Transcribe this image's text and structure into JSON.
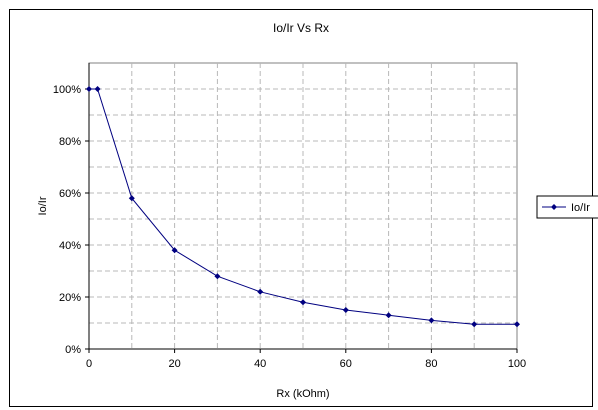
{
  "chart_data": {
    "type": "line",
    "title": "Io/Ir Vs Rx",
    "xlabel": "Rx (kOhm)",
    "ylabel": "Io/Ir",
    "xlim": [
      0,
      100
    ],
    "ylim": [
      0,
      1.1
    ],
    "x_ticks": [
      0,
      20,
      40,
      60,
      80,
      100
    ],
    "x_tick_labels": [
      "0",
      "20",
      "40",
      "60",
      "80",
      "100"
    ],
    "x_minor_grid": [
      10,
      30,
      50,
      70,
      90
    ],
    "y_ticks": [
      0,
      0.2,
      0.4,
      0.6,
      0.8,
      1.0
    ],
    "y_tick_labels": [
      "0%",
      "20%",
      "40%",
      "60%",
      "80%",
      "100%"
    ],
    "y_minor_grid": [
      0.1,
      0.3,
      0.5,
      0.7,
      0.9
    ],
    "grid": true,
    "legend_position": "right",
    "series": [
      {
        "name": "Io/Ir",
        "color": "#000080",
        "marker": "diamond",
        "x": [
          0,
          2,
          10,
          20,
          30,
          40,
          50,
          60,
          70,
          80,
          90,
          100
        ],
        "y": [
          1.0,
          1.0,
          0.58,
          0.38,
          0.28,
          0.22,
          0.18,
          0.15,
          0.13,
          0.11,
          0.095,
          0.095
        ]
      }
    ]
  }
}
